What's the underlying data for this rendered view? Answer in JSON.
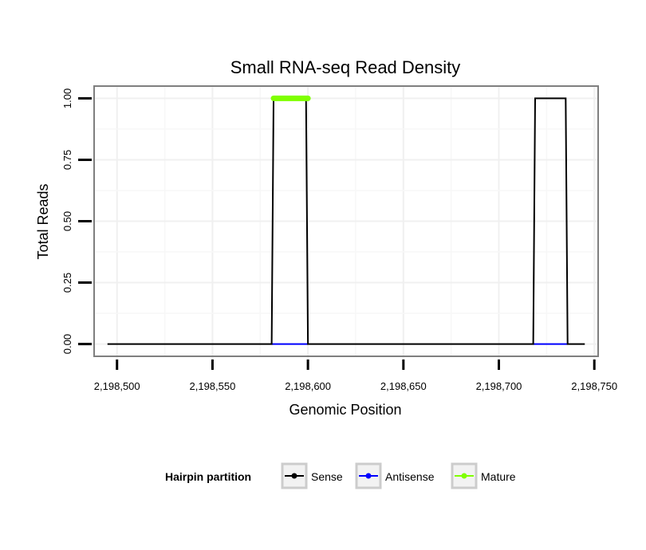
{
  "chart_data": {
    "type": "line",
    "title": "Small RNA-seq Read Density",
    "xlabel": "Genomic Position",
    "ylabel": "Total Reads",
    "xlim": [
      2198488,
      2198752
    ],
    "ylim": [
      -0.05,
      1.05
    ],
    "x_ticks": [
      2198500,
      2198550,
      2198600,
      2198650,
      2198700,
      2198750
    ],
    "x_tick_labels": [
      "2,198,500",
      "2,198,550",
      "2,198,600",
      "2,198,650",
      "2,198,700",
      "2,198,750"
    ],
    "y_ticks": [
      0,
      0.25,
      0.5,
      0.75,
      1
    ],
    "y_tick_labels": [
      "0.00",
      "0.25",
      "0.50",
      "0.75",
      "1.00"
    ],
    "grid": true,
    "legend": {
      "title": "Hairpin partition",
      "position": "bottom",
      "entries": [
        {
          "label": "Sense",
          "color": "#000000"
        },
        {
          "label": "Antisense",
          "color": "#0000ff"
        },
        {
          "label": "Mature",
          "color": "#7fff00"
        }
      ]
    },
    "series": [
      {
        "name": "Sense",
        "color": "#000000",
        "x": [
          2198495,
          2198581,
          2198582,
          2198599,
          2198600,
          2198718,
          2198719,
          2198735,
          2198736,
          2198745
        ],
        "y": [
          0,
          0,
          1,
          1,
          0,
          0,
          1,
          1,
          0,
          0
        ]
      },
      {
        "name": "Antisense",
        "color": "#0000ff",
        "x": [
          2198581,
          2198600
        ],
        "y": [
          0,
          0
        ],
        "x2": [
          2198718,
          2198736
        ],
        "y2": [
          0,
          0
        ]
      },
      {
        "name": "Mature",
        "color": "#7fff00",
        "x": [
          2198582,
          2198600
        ],
        "y": [
          1,
          1
        ]
      }
    ]
  }
}
